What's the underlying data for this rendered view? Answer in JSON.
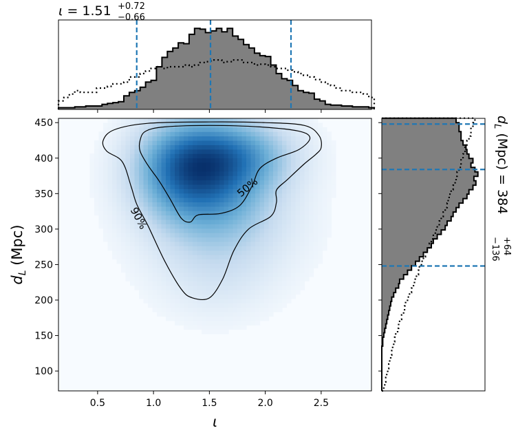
{
  "chart_data": {
    "type": "heatmap",
    "title_top": {
      "symbol": "ι",
      "equals": "=",
      "median": "1.51",
      "plus": "+0.72",
      "minus": "−0.66"
    },
    "title_right": {
      "symbol": "d",
      "sub": "L",
      "unit": "(Mpc)",
      "equals": "=",
      "median": "384",
      "plus": "+64",
      "minus": "−136"
    },
    "xlabel": "ι",
    "ylabel": {
      "symbol": "d",
      "sub": "L",
      "unit": "(Mpc)"
    },
    "xlim": [
      0.15,
      2.95
    ],
    "ylim": [
      72,
      456
    ],
    "xticks": [
      0.5,
      1.0,
      1.5,
      2.0,
      2.5
    ],
    "xtick_labels": [
      "0.5",
      "1.0",
      "1.5",
      "2.0",
      "2.5"
    ],
    "yticks": [
      100,
      150,
      200,
      250,
      300,
      350,
      400,
      450
    ],
    "ytick_labels": [
      "100",
      "150",
      "200",
      "250",
      "300",
      "350",
      "400",
      "450"
    ],
    "quantile_lines_x": [
      0.85,
      1.51,
      2.23
    ],
    "quantile_lines_y": [
      248,
      384,
      448
    ],
    "contour_labels": [
      "50%",
      "90%"
    ],
    "colormap": [
      "#f7fbff",
      "#c6dbef",
      "#6baed6",
      "#2171b5",
      "#08306b"
    ],
    "density_peaks": [
      {
        "x": 1.3,
        "y": 390,
        "sx": 0.32,
        "sy": 45,
        "w": 1.0
      },
      {
        "x": 1.75,
        "y": 405,
        "sx": 0.35,
        "sy": 35,
        "w": 0.7
      },
      {
        "x": 1.55,
        "y": 345,
        "sx": 0.4,
        "sy": 45,
        "w": 0.45
      },
      {
        "x": 1.6,
        "y": 290,
        "sx": 0.45,
        "sy": 50,
        "w": 0.25
      },
      {
        "x": 1.55,
        "y": 220,
        "sx": 0.35,
        "sy": 40,
        "w": 0.1
      }
    ],
    "contour_50": [
      [
        0.88,
        425
      ],
      [
        0.93,
        438
      ],
      [
        1.1,
        444
      ],
      [
        1.5,
        446
      ],
      [
        1.95,
        444
      ],
      [
        2.3,
        438
      ],
      [
        2.4,
        428
      ],
      [
        2.3,
        412
      ],
      [
        2.1,
        400
      ],
      [
        1.95,
        385
      ],
      [
        1.88,
        360
      ],
      [
        1.77,
        333
      ],
      [
        1.6,
        322
      ],
      [
        1.4,
        320
      ],
      [
        1.33,
        310
      ],
      [
        1.25,
        315
      ],
      [
        1.15,
        342
      ],
      [
        1.05,
        368
      ],
      [
        0.95,
        390
      ],
      [
        0.88,
        410
      ]
    ],
    "contour_90": [
      [
        0.55,
        425
      ],
      [
        0.65,
        440
      ],
      [
        0.95,
        449
      ],
      [
        1.5,
        451
      ],
      [
        2.0,
        450
      ],
      [
        2.35,
        446
      ],
      [
        2.48,
        432
      ],
      [
        2.5,
        415
      ],
      [
        2.45,
        405
      ],
      [
        2.35,
        392
      ],
      [
        2.2,
        370
      ],
      [
        2.1,
        355
      ],
      [
        2.1,
        338
      ],
      [
        2.05,
        318
      ],
      [
        1.85,
        300
      ],
      [
        1.72,
        270
      ],
      [
        1.62,
        230
      ],
      [
        1.5,
        203
      ],
      [
        1.35,
        203
      ],
      [
        1.25,
        215
      ],
      [
        1.1,
        255
      ],
      [
        0.95,
        305
      ],
      [
        0.85,
        335
      ],
      [
        0.8,
        360
      ],
      [
        0.72,
        395
      ],
      [
        0.58,
        410
      ]
    ],
    "top_marginal": {
      "bins_start": 0.15,
      "bin_width": 0.0487,
      "posterior": [
        0.02,
        0.02,
        0.02,
        0.03,
        0.03,
        0.04,
        0.04,
        0.04,
        0.06,
        0.07,
        0.08,
        0.09,
        0.16,
        0.2,
        0.22,
        0.26,
        0.32,
        0.34,
        0.5,
        0.61,
        0.68,
        0.72,
        0.78,
        0.77,
        0.88,
        0.95,
        0.94,
        0.9,
        0.92,
        0.95,
        0.91,
        0.95,
        0.86,
        0.82,
        0.76,
        0.72,
        0.66,
        0.63,
        0.62,
        0.52,
        0.42,
        0.36,
        0.34,
        0.28,
        0.22,
        0.2,
        0.19,
        0.12,
        0.1,
        0.06,
        0.05,
        0.05,
        0.04,
        0.04,
        0.03,
        0.03,
        0.03,
        0.02
      ],
      "prior": [
        0.1,
        0.14,
        0.18,
        0.22,
        0.2,
        0.2,
        0.2,
        0.25,
        0.25,
        0.27,
        0.3,
        0.3,
        0.32,
        0.38,
        0.38,
        0.42,
        0.45,
        0.48,
        0.5,
        0.48,
        0.5,
        0.5,
        0.5,
        0.52,
        0.5,
        0.52,
        0.55,
        0.56,
        0.58,
        0.58,
        0.55,
        0.56,
        0.58,
        0.58,
        0.55,
        0.55,
        0.52,
        0.53,
        0.52,
        0.5,
        0.48,
        0.48,
        0.46,
        0.44,
        0.42,
        0.4,
        0.38,
        0.35,
        0.32,
        0.3,
        0.28,
        0.25,
        0.22,
        0.22,
        0.2,
        0.2,
        0.18,
        0.14
      ]
    },
    "right_marginal": {
      "bins_start": 72,
      "bin_width": 6.3,
      "posterior": [
        0,
        0,
        0,
        0,
        0,
        0,
        0,
        0,
        0,
        0,
        0.01,
        0.01,
        0.02,
        0.03,
        0.04,
        0.05,
        0.06,
        0.07,
        0.08,
        0.09,
        0.1,
        0.12,
        0.14,
        0.17,
        0.18,
        0.22,
        0.26,
        0.3,
        0.34,
        0.38,
        0.42,
        0.46,
        0.5,
        0.52,
        0.56,
        0.6,
        0.64,
        0.66,
        0.7,
        0.72,
        0.75,
        0.78,
        0.82,
        0.86,
        0.88,
        0.92,
        0.95,
        0.93,
        0.97,
        0.94,
        0.9,
        0.92,
        0.88,
        0.86,
        0.85,
        0.82,
        0.8,
        0.8,
        0.78,
        0.78,
        0.75
      ],
      "prior": [
        0.02,
        0.03,
        0.04,
        0.05,
        0.06,
        0.07,
        0.08,
        0.09,
        0.1,
        0.11,
        0.12,
        0.13,
        0.14,
        0.16,
        0.17,
        0.18,
        0.2,
        0.22,
        0.23,
        0.24,
        0.26,
        0.28,
        0.3,
        0.32,
        0.33,
        0.35,
        0.37,
        0.38,
        0.4,
        0.42,
        0.44,
        0.46,
        0.48,
        0.5,
        0.52,
        0.54,
        0.56,
        0.58,
        0.6,
        0.62,
        0.64,
        0.66,
        0.67,
        0.68,
        0.7,
        0.72,
        0.74,
        0.75,
        0.76,
        0.78,
        0.8,
        0.8,
        0.82,
        0.84,
        0.84,
        0.86,
        0.88,
        0.9,
        0.9,
        0.92,
        0.94
      ]
    }
  }
}
